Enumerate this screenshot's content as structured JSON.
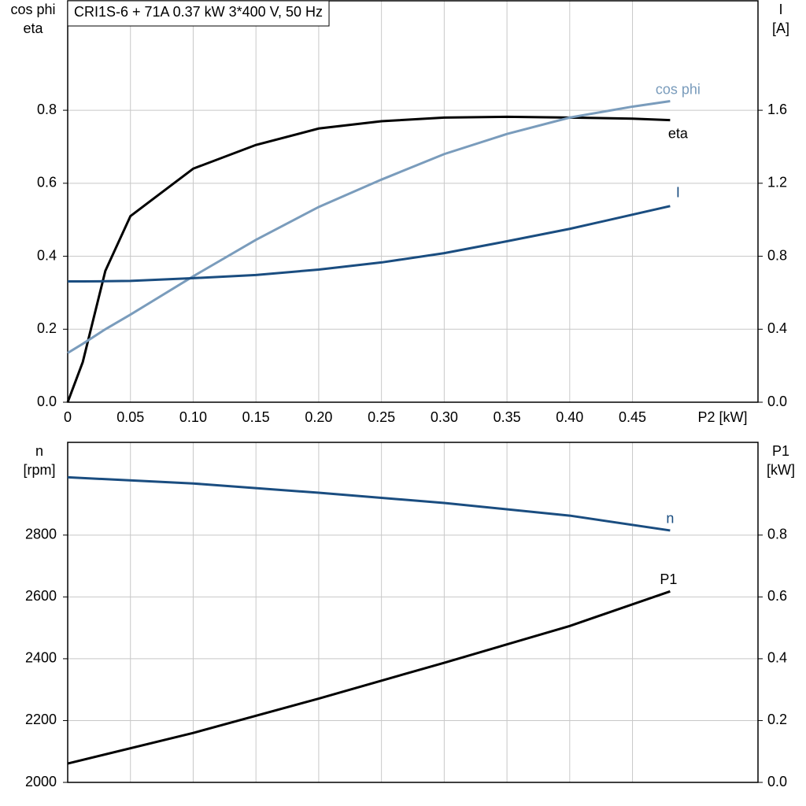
{
  "chart_data": [
    {
      "type": "line",
      "title": "CRI1S-6 + 71A   0.37 kW   3*400 V, 50 Hz",
      "ylabel": [
        "cos phi",
        "eta"
      ],
      "y2label": [
        "I",
        "[A]"
      ],
      "xlabel": "P2 [kW]",
      "x": [
        0,
        0.012,
        0.03,
        0.05,
        0.1,
        0.15,
        0.2,
        0.25,
        0.3,
        0.35,
        0.4,
        0.45,
        0.48
      ],
      "xlim": [
        0,
        0.55
      ],
      "xticks": [
        0,
        0.05,
        {
          "value": 0.1,
          "label": "0.10"
        },
        0.15,
        {
          "value": 0.2,
          "label": "0.20"
        },
        0.25,
        {
          "value": 0.3,
          "label": "0.30"
        },
        0.35,
        {
          "value": 0.4,
          "label": "0.40"
        },
        0.45
      ],
      "ylim": [
        0,
        1.1
      ],
      "yticks": [
        {
          "value": 0,
          "label": "0.0"
        },
        0.2,
        0.4,
        0.6,
        0.8
      ],
      "y2lim": [
        0,
        2.2
      ],
      "y2ticks": [
        {
          "value": 0,
          "label": "0.0"
        },
        0.4,
        0.8,
        1.2,
        1.6
      ],
      "grid": true,
      "series": [
        {
          "name": "eta",
          "color": "#000000",
          "values": [
            0,
            0.11,
            0.36,
            0.51,
            0.64,
            0.705,
            0.75,
            0.77,
            0.78,
            0.782,
            0.78,
            0.777,
            0.773
          ]
        },
        {
          "name": "cos phi",
          "color": "#7a9cbc",
          "values": [
            0.135,
            0.16,
            0.2,
            0.24,
            0.345,
            0.445,
            0.535,
            0.61,
            0.68,
            0.735,
            0.78,
            0.81,
            0.825
          ]
        },
        {
          "name": "I",
          "color": "#1a4d80",
          "axis": "y2",
          "values": [
            0.662,
            0.662,
            0.663,
            0.665,
            0.68,
            0.697,
            0.727,
            0.766,
            0.817,
            0.882,
            0.95,
            1.028,
            1.075
          ]
        }
      ]
    },
    {
      "type": "line",
      "ylabel": [
        "n",
        "[rpm]"
      ],
      "y2label": [
        "P1",
        "[kW]"
      ],
      "x": [
        0,
        0.1,
        0.2,
        0.3,
        0.4,
        0.48
      ],
      "xlim": [
        0,
        0.55
      ],
      "xticks": [
        0,
        0.05,
        0.1,
        0.15,
        0.2,
        0.25,
        0.3,
        0.35,
        0.4,
        0.45
      ],
      "ylim": [
        2000,
        3100
      ],
      "yticks": [
        2000,
        2200,
        2400,
        2600,
        2800
      ],
      "y2lim": [
        0,
        1.1
      ],
      "y2ticks": [
        {
          "value": 0,
          "label": "0.0"
        },
        0.2,
        0.4,
        0.6,
        0.8
      ],
      "grid": true,
      "series": [
        {
          "name": "n",
          "color": "#1a4d80",
          "values": [
            2987,
            2967,
            2937,
            2904,
            2863,
            2815
          ]
        },
        {
          "name": "P1",
          "color": "#000000",
          "axis": "y2",
          "values": [
            0.061,
            0.16,
            0.271,
            0.387,
            0.506,
            0.618
          ]
        }
      ]
    }
  ]
}
